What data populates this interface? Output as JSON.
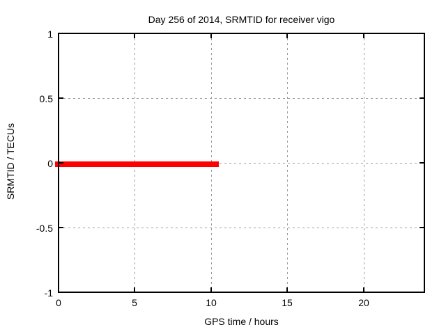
{
  "chart_data": {
    "type": "line",
    "title": "Day 256 of 2014, SRMTID for receiver vigo",
    "xlabel": "GPS time / hours",
    "ylabel": "SRMTID / TECUs",
    "xlim": [
      0,
      24
    ],
    "ylim": [
      -1,
      1
    ],
    "x_ticks": [
      0,
      5,
      10,
      15,
      20
    ],
    "y_ticks": [
      1,
      0.5,
      0,
      -0.5,
      -1
    ],
    "x_tick_labels": [
      "0",
      "5",
      "10",
      "15",
      "20"
    ],
    "y_tick_labels": [
      "1",
      "0.5",
      "0",
      "-0.5",
      "-1"
    ],
    "grid": "dotted",
    "legend_position": "none",
    "series": [
      {
        "name": "SRMTID",
        "color": "#ff0000",
        "style": "thick solid line",
        "x": [
          0,
          10.5
        ],
        "y": [
          0,
          0
        ]
      }
    ]
  },
  "colors": {
    "background": "#ffffff",
    "plot_border": "#000000",
    "grid": "#9c9c9c",
    "text": "#000000",
    "series_red": "#ff0000"
  }
}
